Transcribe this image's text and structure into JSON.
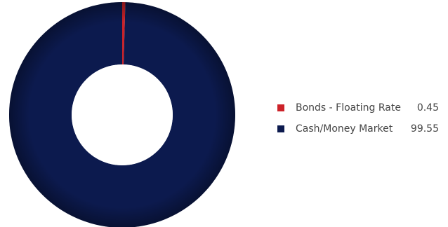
{
  "chart_data": {
    "type": "pie",
    "title": "",
    "variant": "donut",
    "legend_position": "right",
    "series": [
      {
        "label": "Bonds - Floating Rate",
        "value": 0.45,
        "display_value": "0.45",
        "color": "#cc2229"
      },
      {
        "label": "Cash/Money Market",
        "value": 99.55,
        "display_value": "99.55",
        "color": "#0c1a4e"
      }
    ]
  }
}
